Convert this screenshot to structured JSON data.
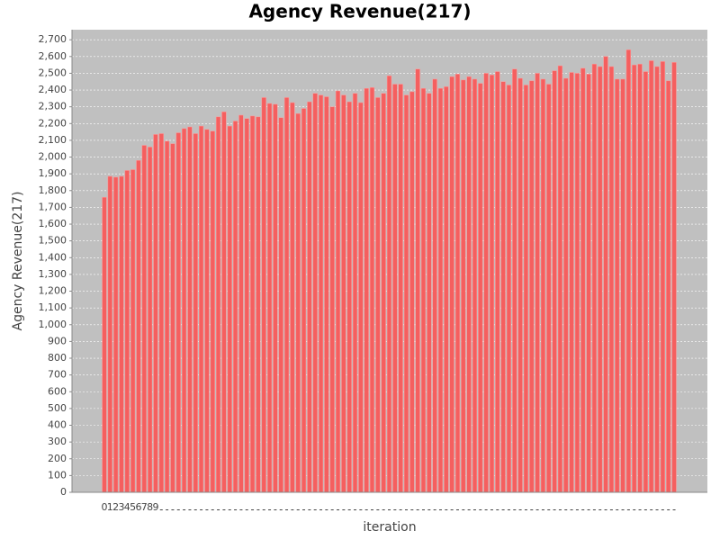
{
  "chart_data": {
    "type": "bar",
    "title": "Agency Revenue(217)",
    "x_label": "iteration",
    "y_label": "Agency Revenue(217)",
    "categories": [
      "0",
      "1",
      "2",
      "3",
      "4",
      "5",
      "6",
      "7",
      "8",
      "9",
      null,
      null,
      null,
      null,
      null,
      null,
      null,
      null,
      null,
      null,
      null,
      null,
      null,
      null,
      null,
      null,
      null,
      null,
      null,
      null,
      null,
      null,
      null,
      null,
      null,
      null,
      null,
      null,
      null,
      null,
      null,
      null,
      null,
      null,
      null,
      null,
      null,
      null,
      null,
      null,
      null,
      null,
      null,
      null,
      null,
      null,
      null,
      null,
      null,
      null,
      null,
      null,
      null,
      null,
      null,
      null,
      null,
      null,
      null,
      null,
      null,
      null,
      null,
      null,
      null,
      null,
      null,
      null,
      null,
      null,
      null,
      null,
      null,
      null,
      null,
      null,
      null,
      null,
      null,
      null,
      null,
      null,
      null,
      null,
      null,
      null,
      null,
      null,
      null,
      null,
      null
    ],
    "values": [
      1760,
      1885,
      1880,
      1885,
      1920,
      1925,
      1980,
      2070,
      2060,
      2135,
      2140,
      2095,
      2080,
      2145,
      2170,
      2180,
      2140,
      2185,
      2165,
      2155,
      2240,
      2270,
      2185,
      2215,
      2250,
      2230,
      2245,
      2240,
      2355,
      2320,
      2315,
      2235,
      2355,
      2325,
      2260,
      2290,
      2330,
      2380,
      2370,
      2360,
      2300,
      2395,
      2370,
      2330,
      2380,
      2325,
      2410,
      2415,
      2355,
      2380,
      2485,
      2435,
      2435,
      2370,
      2390,
      2525,
      2410,
      2380,
      2465,
      2410,
      2420,
      2480,
      2495,
      2460,
      2480,
      2465,
      2440,
      2500,
      2490,
      2510,
      2450,
      2430,
      2525,
      2470,
      2430,
      2455,
      2500,
      2465,
      2435,
      2515,
      2545,
      2470,
      2505,
      2500,
      2530,
      2495,
      2555,
      2540,
      2600,
      2540,
      2465,
      2465,
      2640,
      2550,
      2555,
      2510,
      2575,
      2540,
      2570,
      2455,
      2565
    ],
    "color": "#f55f5f",
    "ylim": [
      0,
      2760
    ],
    "yticks": [
      0,
      100,
      200,
      300,
      400,
      500,
      600,
      700,
      800,
      900,
      {
        "value": 1000,
        "label": "1,000"
      },
      {
        "value": 1100,
        "label": "1,100"
      },
      {
        "value": 1200,
        "label": "1,200"
      },
      {
        "value": 1300,
        "label": "1,300"
      },
      {
        "value": 1400,
        "label": "1,400"
      },
      {
        "value": 1500,
        "label": "1,500"
      },
      {
        "value": 1600,
        "label": "1,600"
      },
      {
        "value": 1700,
        "label": "1,700"
      },
      {
        "value": 1800,
        "label": "1,800"
      },
      {
        "value": 1900,
        "label": "1,900"
      },
      {
        "value": 2000,
        "label": "2,000"
      },
      {
        "value": 2100,
        "label": "2,100"
      },
      {
        "value": 2200,
        "label": "2,200"
      },
      {
        "value": 2300,
        "label": "2,300"
      },
      {
        "value": 2400,
        "label": "2,400"
      },
      {
        "value": 2500,
        "label": "2,500"
      },
      {
        "value": 2600,
        "label": "2,600"
      },
      {
        "value": 2700,
        "label": "2,700"
      }
    ],
    "grid": true
  }
}
